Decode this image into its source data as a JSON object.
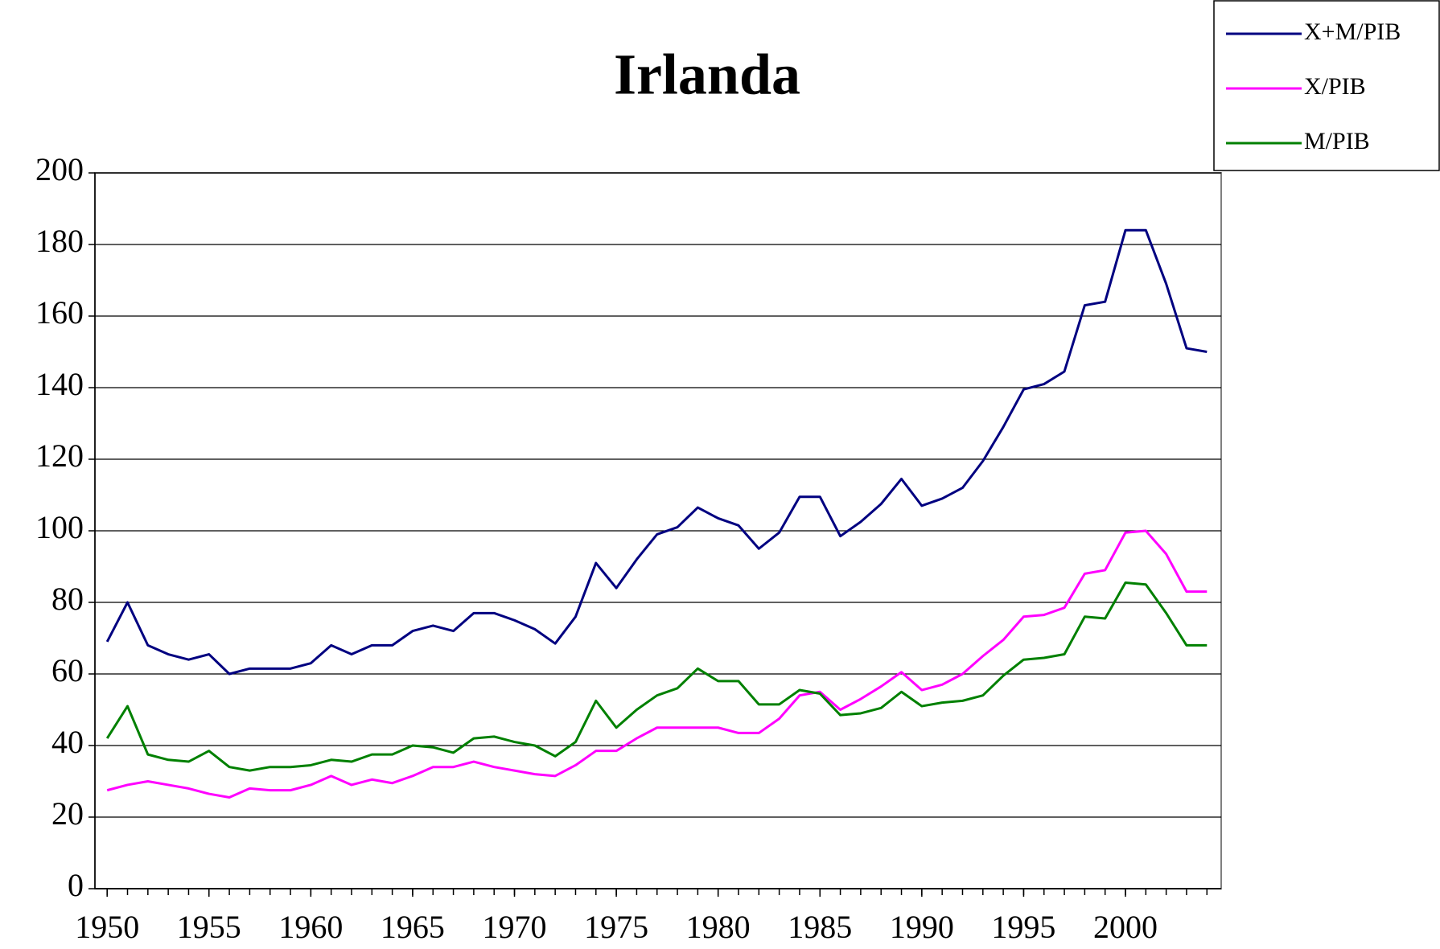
{
  "chart_data": {
    "type": "line",
    "title": "Irlanda",
    "x": [
      1950,
      1951,
      1952,
      1953,
      1954,
      1955,
      1956,
      1957,
      1958,
      1959,
      1960,
      1961,
      1962,
      1963,
      1964,
      1965,
      1966,
      1967,
      1968,
      1969,
      1970,
      1971,
      1972,
      1973,
      1974,
      1975,
      1976,
      1977,
      1978,
      1979,
      1980,
      1981,
      1982,
      1983,
      1984,
      1985,
      1986,
      1987,
      1988,
      1989,
      1990,
      1991,
      1992,
      1993,
      1994,
      1995,
      1996,
      1997,
      1998,
      1999,
      2000,
      2001,
      2002,
      2003,
      2004
    ],
    "series": [
      {
        "name": "X+M/PIB",
        "color": "#000080",
        "values": [
          69,
          80,
          68,
          65.5,
          64,
          65.5,
          60,
          61.5,
          61.5,
          61.5,
          63,
          68,
          65.5,
          68,
          68,
          72,
          73.5,
          72,
          77,
          77,
          75,
          72.5,
          68.5,
          76,
          91,
          84,
          92,
          99,
          101,
          106.5,
          103.5,
          101.5,
          95,
          99.5,
          109.5,
          109.5,
          98.5,
          102.5,
          107.5,
          114.5,
          107,
          109,
          112,
          119.5,
          129,
          139.5,
          141,
          144.5,
          163,
          164,
          184,
          184,
          169,
          151,
          150
        ]
      },
      {
        "name": "X/PIB",
        "color": "#ff00ff",
        "values": [
          27.5,
          29,
          30,
          29,
          28,
          26.5,
          25.5,
          28,
          27.5,
          27.5,
          29,
          31.5,
          29,
          30.5,
          29.5,
          31.5,
          34,
          34,
          35.5,
          34,
          33,
          32,
          31.5,
          34.5,
          38.5,
          38.5,
          42,
          45,
          45,
          45,
          45,
          43.5,
          43.5,
          47.5,
          54,
          55,
          50,
          53,
          56.5,
          60.5,
          55.5,
          57,
          60,
          65,
          69.5,
          76,
          76.5,
          78.5,
          88,
          89,
          99.5,
          100,
          93.5,
          83,
          83
        ]
      },
      {
        "name": "M/PIB",
        "color": "#008000",
        "values": [
          42,
          51,
          37.5,
          36,
          35.5,
          38.5,
          34,
          33,
          34,
          34,
          34.5,
          36,
          35.5,
          37.5,
          37.5,
          40,
          39.5,
          38,
          42,
          42.5,
          41,
          40,
          37,
          41,
          52.5,
          45,
          50,
          54,
          56,
          61.5,
          58,
          58,
          51.5,
          51.5,
          55.5,
          54.5,
          48.5,
          49,
          50.5,
          55,
          51,
          52,
          52.5,
          54,
          59.5,
          64,
          64.5,
          65.5,
          76,
          75.5,
          85.5,
          85,
          77,
          68,
          68
        ]
      }
    ],
    "xlim": [
      1949.4,
      2004.7
    ],
    "xticks": [
      1950,
      1955,
      1960,
      1965,
      1970,
      1975,
      1980,
      1985,
      1990,
      1995,
      2000
    ],
    "ylim": [
      0,
      200
    ],
    "yticks": [
      0,
      20,
      40,
      60,
      80,
      100,
      120,
      140,
      160,
      180,
      200
    ],
    "grid": true,
    "legend": "top-right"
  }
}
